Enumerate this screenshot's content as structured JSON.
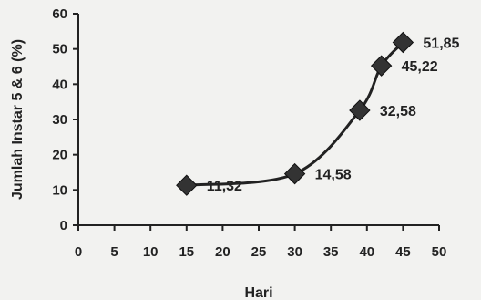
{
  "chart_data": {
    "type": "line",
    "title": "",
    "xlabel": "Hari",
    "ylabel": "Jumlah Instar 5 & 6 (%)",
    "xlim": [
      0,
      50
    ],
    "ylim": [
      0,
      60
    ],
    "x_ticks": [
      0,
      5,
      10,
      15,
      20,
      25,
      30,
      35,
      40,
      45,
      50
    ],
    "y_ticks": [
      0,
      10,
      20,
      30,
      40,
      50,
      60
    ],
    "x_tick_labels": [
      "0",
      "5",
      "10",
      "15",
      "20",
      "25",
      "30",
      "35",
      "40",
      "45",
      "50"
    ],
    "y_tick_labels": [
      "0",
      "10",
      "20",
      "30",
      "40",
      "50",
      "60"
    ],
    "grid": false,
    "legend": "none",
    "marker": "diamond",
    "line_color": "#222222",
    "marker_color": "#333333",
    "series": [
      {
        "x": [
          15,
          30,
          39,
          42,
          45
        ],
        "values": [
          11.32,
          14.58,
          32.58,
          45.22,
          51.85
        ],
        "labels": [
          "11,32",
          "14,58",
          "32,58",
          "45,22",
          "51,85"
        ]
      }
    ]
  }
}
